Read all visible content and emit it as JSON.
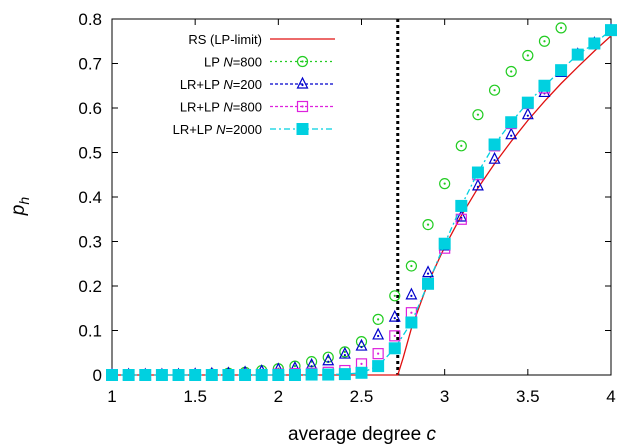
{
  "chart_data": {
    "type": "line",
    "xlabel_text": "average degree ",
    "xlabel_var": "c",
    "ylabel_var": "p",
    "ylabel_sub": "h",
    "xlim": [
      1,
      4
    ],
    "ylim": [
      0,
      0.8
    ],
    "xticks": [
      1,
      1.5,
      2,
      2.5,
      3,
      3.5,
      4
    ],
    "xtick_labels": [
      "1",
      "1.5",
      "2",
      "2.5",
      "3",
      "3.5",
      "4"
    ],
    "yticks": [
      0,
      0.1,
      0.2,
      0.3,
      0.4,
      0.5,
      0.6,
      0.7,
      0.8
    ],
    "ytick_labels": [
      "0",
      "0.1",
      "0.2",
      "0.3",
      "0.4",
      "0.5",
      "0.6",
      "0.7",
      "0.8"
    ],
    "grid": false,
    "legend_position": "top-left",
    "vline": {
      "x": 2.718,
      "style": "dotted",
      "color": "#000000"
    },
    "series": [
      {
        "name": "RS (LP-limit)",
        "style": "line",
        "color": "#e01010",
        "x": [
          1,
          2.718,
          2.75,
          2.8,
          2.9,
          3.0,
          3.1,
          3.2,
          3.3,
          3.4,
          3.5,
          3.6,
          3.7,
          3.8,
          3.9,
          4.0
        ],
        "y": [
          0,
          0,
          0.038,
          0.105,
          0.207,
          0.288,
          0.358,
          0.42,
          0.475,
          0.525,
          0.572,
          0.615,
          0.655,
          0.692,
          0.728,
          0.762
        ]
      },
      {
        "name_prefix": "LP ",
        "name_var": "N",
        "name_suffix": "=800",
        "style": "points",
        "marker": "circle",
        "color": "#22cc22",
        "x": [
          1.0,
          1.1,
          1.2,
          1.3,
          1.4,
          1.5,
          1.6,
          1.7,
          1.8,
          1.9,
          2.0,
          2.1,
          2.2,
          2.3,
          2.4,
          2.5,
          2.6,
          2.7,
          2.8,
          2.9,
          3.0,
          3.1,
          3.2,
          3.3,
          3.4,
          3.5,
          3.6,
          3.7
        ],
        "y": [
          0.0,
          0.0,
          0.0,
          0.0,
          0.001,
          0.001,
          0.002,
          0.004,
          0.006,
          0.01,
          0.014,
          0.02,
          0.03,
          0.04,
          0.052,
          0.075,
          0.125,
          0.178,
          0.245,
          0.338,
          0.43,
          0.515,
          0.585,
          0.64,
          0.682,
          0.718,
          0.75,
          0.78
        ]
      },
      {
        "name_prefix": "LR+LP ",
        "name_var": "N",
        "name_suffix": "=200",
        "style": "points",
        "marker": "triangle",
        "color": "#0000cc",
        "x": [
          1.0,
          1.1,
          1.2,
          1.3,
          1.4,
          1.5,
          1.6,
          1.7,
          1.8,
          1.9,
          2.0,
          2.1,
          2.2,
          2.3,
          2.4,
          2.5,
          2.6,
          2.7,
          2.8,
          2.9,
          3.0,
          3.1,
          3.2,
          3.3,
          3.4,
          3.5,
          3.6,
          3.7,
          3.8,
          3.9,
          4.0
        ],
        "y": [
          0.0,
          0.0,
          0.0,
          0.0,
          0.0,
          0.001,
          0.002,
          0.003,
          0.005,
          0.008,
          0.012,
          0.015,
          0.022,
          0.032,
          0.047,
          0.065,
          0.09,
          0.13,
          0.18,
          0.23,
          0.29,
          0.355,
          0.425,
          0.485,
          0.54,
          0.585,
          0.635,
          0.68,
          0.72,
          0.745,
          0.775
        ]
      },
      {
        "name_prefix": "LR+LP ",
        "name_var": "N",
        "name_suffix": "=800",
        "style": "points",
        "marker": "square-open",
        "color": "#dd22dd",
        "x": [
          1.0,
          1.1,
          1.2,
          1.3,
          1.4,
          1.5,
          1.6,
          1.7,
          1.8,
          1.9,
          2.0,
          2.1,
          2.2,
          2.3,
          2.4,
          2.5,
          2.6,
          2.7,
          2.8,
          2.9,
          3.0,
          3.1,
          3.2,
          3.3,
          3.4,
          3.5,
          3.6,
          3.7,
          3.8,
          3.9,
          4.0
        ],
        "y": [
          0.0,
          0.0,
          0.0,
          0.0,
          0.0,
          0.0,
          0.0,
          0.0,
          0.001,
          0.001,
          0.002,
          0.003,
          0.004,
          0.006,
          0.01,
          0.025,
          0.048,
          0.088,
          0.14,
          0.205,
          0.285,
          0.35,
          0.45,
          0.515,
          0.565,
          0.61,
          0.645,
          0.685,
          0.72,
          0.745,
          0.775
        ]
      },
      {
        "name_prefix": "LR+LP ",
        "name_var": "N",
        "name_suffix": "=2000",
        "style": "linepoints",
        "marker": "square-filled",
        "color": "#00d0e0",
        "x": [
          1.0,
          1.1,
          1.2,
          1.3,
          1.4,
          1.5,
          1.6,
          1.7,
          1.8,
          1.9,
          2.0,
          2.1,
          2.2,
          2.3,
          2.4,
          2.5,
          2.6,
          2.7,
          2.8,
          2.9,
          3.0,
          3.1,
          3.2,
          3.3,
          3.4,
          3.5,
          3.6,
          3.7,
          3.8,
          3.9,
          4.0
        ],
        "y": [
          0.0,
          0.0,
          0.0,
          0.0,
          0.0,
          0.0,
          0.0,
          0.0,
          0.0,
          0.0,
          0.0,
          0.0,
          0.001,
          0.001,
          0.002,
          0.005,
          0.02,
          0.06,
          0.118,
          0.205,
          0.295,
          0.38,
          0.455,
          0.518,
          0.568,
          0.612,
          0.65,
          0.685,
          0.72,
          0.745,
          0.775
        ]
      }
    ]
  }
}
